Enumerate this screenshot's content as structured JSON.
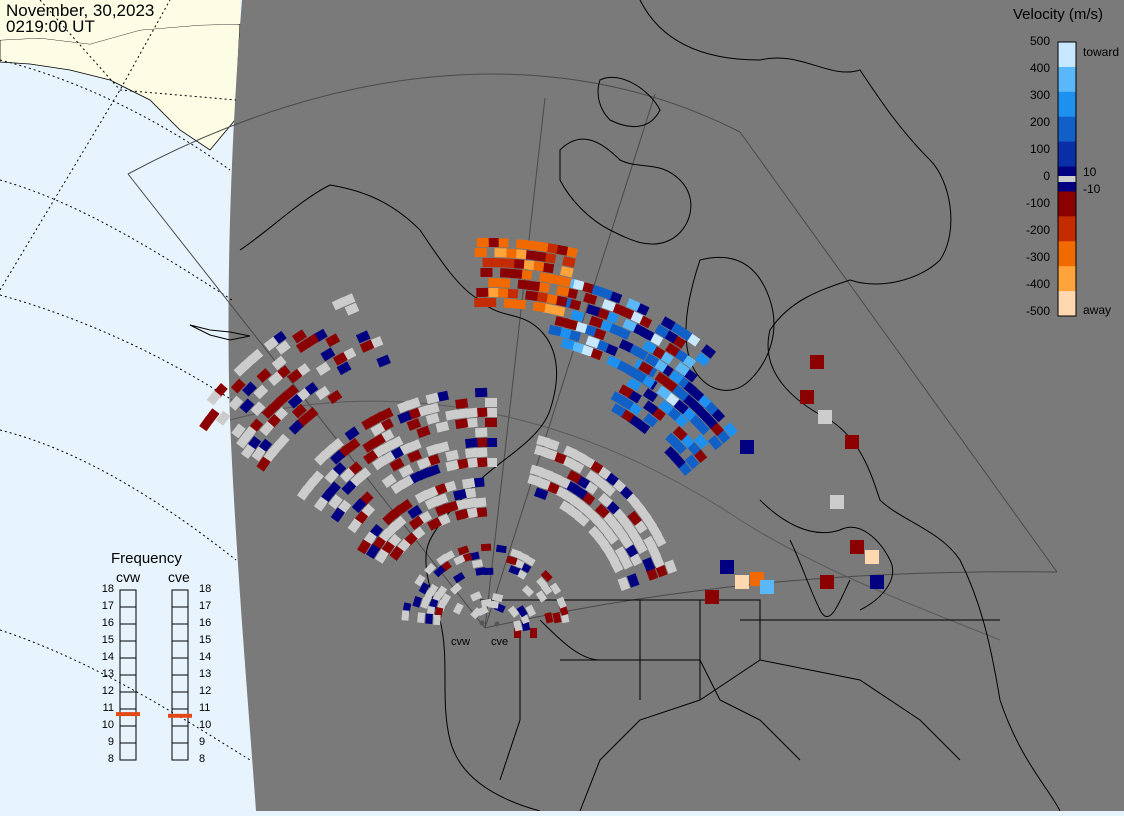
{
  "header": {
    "date": "November, 30,2023",
    "time": "0219:00 UT"
  },
  "colorbar": {
    "title": "Velocity (m/s)",
    "ticks": [
      "500",
      "400",
      "300",
      "200",
      "100",
      "0",
      "-100",
      "-200",
      "-300",
      "-400",
      "-500"
    ],
    "ground_labels": [
      "10",
      "-10"
    ],
    "toward_label": "toward",
    "away_label": "away",
    "colors": [
      "#c8e8ff",
      "#5ab8f8",
      "#1e90f0",
      "#1060c8",
      "#0a2ea8",
      "#000080",
      "#8b0000",
      "#c42c00",
      "#f06a00",
      "#ffa33a",
      "#ffd8b0"
    ],
    "ground_color": "#cccccc"
  },
  "frequency": {
    "title": "Frequency",
    "radars": [
      "cvw",
      "cve"
    ],
    "scale": [
      "18",
      "17",
      "16",
      "15",
      "14",
      "13",
      "12",
      "11",
      "10",
      "9",
      "8"
    ],
    "cvw_mhz": 10.7,
    "cve_mhz": 10.6,
    "marker_color": "#e24a15"
  },
  "sites": [
    "cvw",
    "cve"
  ],
  "colors": {
    "night": "#7a7a7a",
    "day_ocean": "#e8f4fd",
    "day_land": "#fdfde6",
    "coastline": "#000000",
    "ground_scatter": "#cccccc"
  }
}
